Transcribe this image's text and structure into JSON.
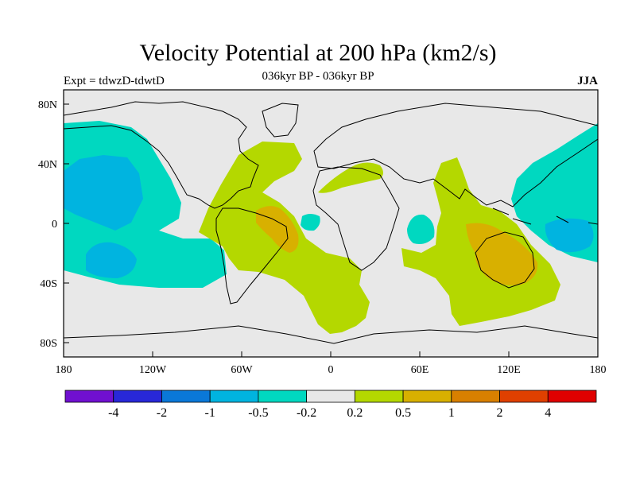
{
  "header": {
    "title": "Velocity Potential at 200 hPa (km2/s)",
    "subtitle": "036kyr BP - 036kyr BP",
    "left_label": "Expt = tdwzD-tdwtD",
    "right_label": "JJA"
  },
  "axes": {
    "lat_labels": [
      "80N",
      "40N",
      "0",
      "40S",
      "80S"
    ],
    "lon_labels": [
      "180",
      "120W",
      "60W",
      "0",
      "60E",
      "120E",
      "180"
    ]
  },
  "colorbar": {
    "colors": [
      "#7010d0",
      "#2828d8",
      "#0a78d8",
      "#00b4e0",
      "#00d8c0",
      "#e8e8e8",
      "#b4d800",
      "#d8b000",
      "#d88000",
      "#e04000",
      "#e00000"
    ],
    "labels": [
      "-4",
      "-2",
      "-1",
      "-0.5",
      "-0.2",
      "0.2",
      "0.5",
      "1",
      "2",
      "4"
    ]
  },
  "chart_data": {
    "type": "heatmap",
    "title": "Velocity Potential at 200 hPa (km2/s)",
    "variable": "200 hPa velocity potential difference",
    "season": "JJA",
    "contour_levels": [
      -4,
      -2,
      -1,
      -0.5,
      -0.2,
      0.2,
      0.5,
      1,
      2,
      4
    ],
    "regions": [
      {
        "name": "North Pacific / Alaska",
        "level": "-0.5 to -0.2",
        "color": "#00d8c0"
      },
      {
        "name": "Central North Pacific",
        "level": "-1 to -0.5",
        "color": "#00b4e0"
      },
      {
        "name": "Central South Pacific",
        "level": "-1 to -0.5",
        "color": "#00b4e0"
      },
      {
        "name": "Western Pacific",
        "level": "-0.5 to -0.2",
        "color": "#00d8c0"
      },
      {
        "name": "Northern Amazon",
        "level": "0.5 to 1",
        "color": "#d8b000"
      },
      {
        "name": "Atlantic / South America / Africa",
        "level": "0.2 to 0.5",
        "color": "#b4d800"
      },
      {
        "name": "Indian Ocean / Asia",
        "level": "0.2 to 0.5",
        "color": "#b4d800"
      },
      {
        "name": "Australia / Maritime Continent",
        "level": "0.5 to 1",
        "color": "#d8b000"
      },
      {
        "name": "Equatorial Atlantic",
        "level": "-0.5 to -0.2",
        "color": "#00d8c0"
      },
      {
        "name": "Western Indian Ocean",
        "level": "-0.5 to -0.2",
        "color": "#00d8c0"
      }
    ]
  }
}
